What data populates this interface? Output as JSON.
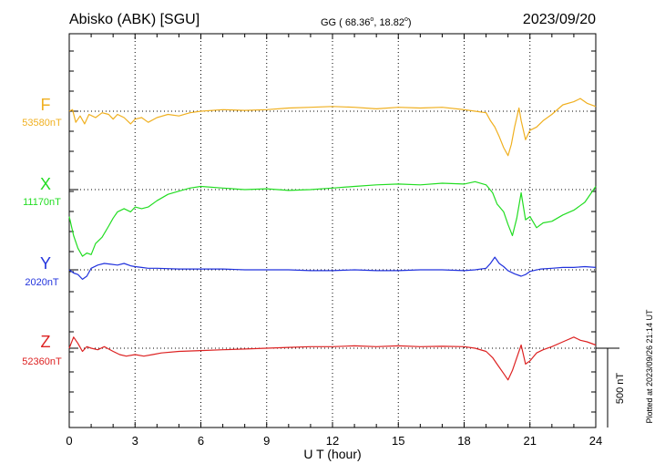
{
  "header": {
    "station": "Abisko (ABK)  [SGU]",
    "coords_prefix": "GG ( 68.36",
    "coords_sep": ",  18.82",
    "coords_suffix": ")",
    "degree": "o",
    "date": "2023/09/20"
  },
  "side_note": "Plotted at 2023/09/26 21:14 UT",
  "chart_data": {
    "type": "line",
    "title": "Abisko (ABK)  [SGU]",
    "xlabel": "U T (hour)",
    "xlim": [
      0,
      24
    ],
    "xticks": [
      "0",
      "3",
      "6",
      "9",
      "12",
      "15",
      "18",
      "21",
      "24"
    ],
    "grid": true,
    "scale_bar": {
      "label": "500 nT",
      "value_nT": 500
    },
    "series": [
      {
        "name": "F",
        "baseline_label": "53580nT",
        "color": "#f0b020",
        "points": [
          [
            0,
            53580
          ],
          [
            0.15,
            53590
          ],
          [
            0.3,
            53510
          ],
          [
            0.5,
            53550
          ],
          [
            0.7,
            53500
          ],
          [
            0.9,
            53560
          ],
          [
            1.2,
            53540
          ],
          [
            1.5,
            53570
          ],
          [
            1.8,
            53560
          ],
          [
            2.0,
            53530
          ],
          [
            2.2,
            53560
          ],
          [
            2.5,
            53540
          ],
          [
            2.8,
            53500
          ],
          [
            3.0,
            53530
          ],
          [
            3.3,
            53540
          ],
          [
            3.6,
            53510
          ],
          [
            4.0,
            53540
          ],
          [
            4.5,
            53560
          ],
          [
            5.0,
            53550
          ],
          [
            5.5,
            53570
          ],
          [
            6.0,
            53580
          ],
          [
            7.0,
            53590
          ],
          [
            8.0,
            53585
          ],
          [
            9.0,
            53590
          ],
          [
            10.0,
            53600
          ],
          [
            11.0,
            53605
          ],
          [
            12.0,
            53610
          ],
          [
            13.0,
            53605
          ],
          [
            14.0,
            53595
          ],
          [
            15.0,
            53605
          ],
          [
            16.0,
            53600
          ],
          [
            17.0,
            53605
          ],
          [
            18.0,
            53590
          ],
          [
            18.5,
            53580
          ],
          [
            19.0,
            53570
          ],
          [
            19.2,
            53520
          ],
          [
            19.4,
            53480
          ],
          [
            19.6,
            53420
          ],
          [
            19.8,
            53350
          ],
          [
            20.0,
            53300
          ],
          [
            20.15,
            53370
          ],
          [
            20.3,
            53480
          ],
          [
            20.5,
            53600
          ],
          [
            20.6,
            53520
          ],
          [
            20.8,
            53400
          ],
          [
            21.0,
            53460
          ],
          [
            21.3,
            53480
          ],
          [
            21.6,
            53520
          ],
          [
            22.0,
            53560
          ],
          [
            22.5,
            53620
          ],
          [
            23.0,
            53640
          ],
          [
            23.3,
            53660
          ],
          [
            23.6,
            53630
          ],
          [
            24.0,
            53610
          ]
        ]
      },
      {
        "name": "X",
        "baseline_label": "11170nT",
        "color": "#22dd22",
        "points": [
          [
            0,
            11000
          ],
          [
            0.2,
            10880
          ],
          [
            0.4,
            10800
          ],
          [
            0.6,
            10750
          ],
          [
            0.8,
            10770
          ],
          [
            1.0,
            10760
          ],
          [
            1.2,
            10830
          ],
          [
            1.5,
            10870
          ],
          [
            1.8,
            10940
          ],
          [
            2.0,
            10990
          ],
          [
            2.2,
            11030
          ],
          [
            2.5,
            11050
          ],
          [
            2.8,
            11030
          ],
          [
            3.0,
            11060
          ],
          [
            3.3,
            11050
          ],
          [
            3.6,
            11060
          ],
          [
            4.0,
            11100
          ],
          [
            4.5,
            11140
          ],
          [
            5.0,
            11160
          ],
          [
            5.5,
            11180
          ],
          [
            6.0,
            11190
          ],
          [
            7.0,
            11180
          ],
          [
            8.0,
            11170
          ],
          [
            9.0,
            11175
          ],
          [
            10.0,
            11165
          ],
          [
            11.0,
            11170
          ],
          [
            12.0,
            11180
          ],
          [
            13.0,
            11190
          ],
          [
            14.0,
            11200
          ],
          [
            15.0,
            11205
          ],
          [
            16.0,
            11200
          ],
          [
            17.0,
            11210
          ],
          [
            18.0,
            11205
          ],
          [
            18.5,
            11220
          ],
          [
            19.0,
            11200
          ],
          [
            19.3,
            11150
          ],
          [
            19.5,
            11080
          ],
          [
            19.8,
            11030
          ],
          [
            20.0,
            10950
          ],
          [
            20.2,
            10880
          ],
          [
            20.4,
            10990
          ],
          [
            20.6,
            11150
          ],
          [
            20.8,
            10980
          ],
          [
            21.0,
            11000
          ],
          [
            21.3,
            10930
          ],
          [
            21.6,
            10960
          ],
          [
            22.0,
            10970
          ],
          [
            22.5,
            11010
          ],
          [
            23.0,
            11040
          ],
          [
            23.5,
            11090
          ],
          [
            24.0,
            11190
          ]
        ]
      },
      {
        "name": "Y",
        "baseline_label": "2020nT",
        "color": "#2233dd",
        "points": [
          [
            0,
            2020
          ],
          [
            0.2,
            2000
          ],
          [
            0.4,
            1990
          ],
          [
            0.6,
            1960
          ],
          [
            0.8,
            1980
          ],
          [
            1.0,
            2030
          ],
          [
            1.3,
            2050
          ],
          [
            1.6,
            2060
          ],
          [
            1.9,
            2055
          ],
          [
            2.2,
            2050
          ],
          [
            2.5,
            2060
          ],
          [
            2.8,
            2045
          ],
          [
            3.0,
            2040
          ],
          [
            3.3,
            2035
          ],
          [
            3.6,
            2030
          ],
          [
            4.0,
            2030
          ],
          [
            5.0,
            2025
          ],
          [
            6.0,
            2025
          ],
          [
            7.0,
            2025
          ],
          [
            8.0,
            2020
          ],
          [
            9.0,
            2020
          ],
          [
            10.0,
            2020
          ],
          [
            11.0,
            2015
          ],
          [
            12.0,
            2015
          ],
          [
            13.0,
            2020
          ],
          [
            14.0,
            2015
          ],
          [
            15.0,
            2015
          ],
          [
            16.0,
            2020
          ],
          [
            17.0,
            2020
          ],
          [
            18.0,
            2015
          ],
          [
            18.5,
            2020
          ],
          [
            19.0,
            2030
          ],
          [
            19.2,
            2060
          ],
          [
            19.4,
            2100
          ],
          [
            19.6,
            2060
          ],
          [
            19.8,
            2040
          ],
          [
            20.0,
            2015
          ],
          [
            20.3,
            1995
          ],
          [
            20.6,
            1980
          ],
          [
            20.8,
            1990
          ],
          [
            21.0,
            2010
          ],
          [
            21.5,
            2025
          ],
          [
            22.0,
            2030
          ],
          [
            22.5,
            2035
          ],
          [
            23.0,
            2035
          ],
          [
            23.5,
            2040
          ],
          [
            24.0,
            2035
          ]
        ]
      },
      {
        "name": "Z",
        "baseline_label": "52360nT",
        "color": "#dd2222",
        "points": [
          [
            0,
            52360
          ],
          [
            0.2,
            52430
          ],
          [
            0.4,
            52390
          ],
          [
            0.6,
            52340
          ],
          [
            0.8,
            52370
          ],
          [
            1.0,
            52360
          ],
          [
            1.3,
            52350
          ],
          [
            1.6,
            52370
          ],
          [
            2.0,
            52340
          ],
          [
            2.3,
            52320
          ],
          [
            2.6,
            52310
          ],
          [
            3.0,
            52320
          ],
          [
            3.4,
            52310
          ],
          [
            3.8,
            52320
          ],
          [
            4.2,
            52330
          ],
          [
            5.0,
            52340
          ],
          [
            6.0,
            52345
          ],
          [
            7.0,
            52350
          ],
          [
            8.0,
            52355
          ],
          [
            9.0,
            52360
          ],
          [
            10.0,
            52365
          ],
          [
            11.0,
            52370
          ],
          [
            12.0,
            52370
          ],
          [
            13.0,
            52375
          ],
          [
            14.0,
            52370
          ],
          [
            15.0,
            52375
          ],
          [
            16.0,
            52370
          ],
          [
            17.0,
            52372
          ],
          [
            18.0,
            52370
          ],
          [
            18.5,
            52360
          ],
          [
            19.0,
            52340
          ],
          [
            19.3,
            52300
          ],
          [
            19.5,
            52260
          ],
          [
            19.8,
            52200
          ],
          [
            20.0,
            52160
          ],
          [
            20.2,
            52220
          ],
          [
            20.4,
            52300
          ],
          [
            20.6,
            52380
          ],
          [
            20.8,
            52260
          ],
          [
            21.0,
            52280
          ],
          [
            21.3,
            52330
          ],
          [
            21.6,
            52350
          ],
          [
            22.0,
            52370
          ],
          [
            22.5,
            52400
          ],
          [
            23.0,
            52430
          ],
          [
            23.3,
            52410
          ],
          [
            23.6,
            52400
          ],
          [
            24.0,
            52380
          ]
        ]
      }
    ]
  }
}
